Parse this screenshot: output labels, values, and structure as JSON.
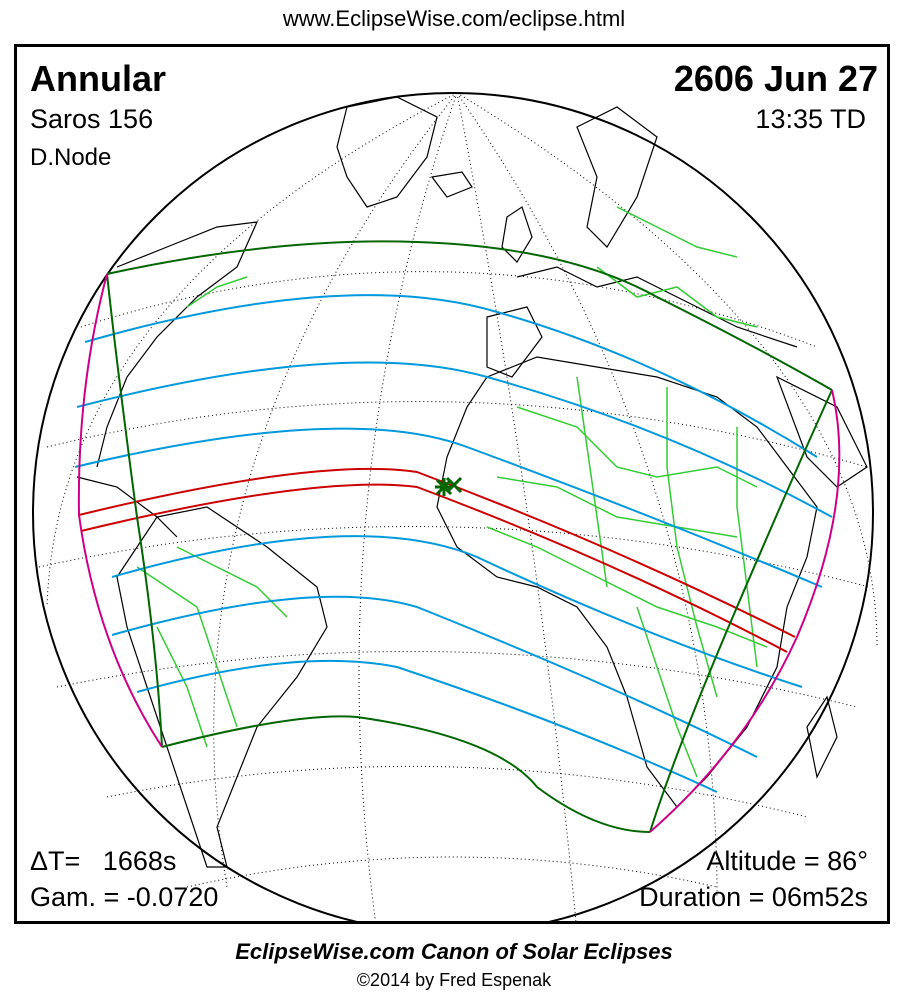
{
  "header": {
    "url": "www.EclipseWise.com/eclipse.html"
  },
  "eclipse": {
    "type": "Annular",
    "date": "2606 Jun 27",
    "saros": "Saros 156",
    "time": "13:35 TD",
    "node": "D.Node",
    "delta_t": "ΔT=   1668s",
    "gamma": "Gam. = -0.0720",
    "altitude": "Altitude = 86°",
    "duration": "Duration = 06m52s"
  },
  "colors": {
    "central_path": "#cc0000",
    "penumbral_limits": "#006600",
    "penumbral_lines": "#0099dd",
    "rise_set_curve": "#cc0088",
    "borders": "#33cc33",
    "coastline": "#000000"
  },
  "footer": {
    "title": "EclipseWise.com Canon of Solar Eclipses",
    "copyright": "©2014 by Fred Espenak"
  }
}
